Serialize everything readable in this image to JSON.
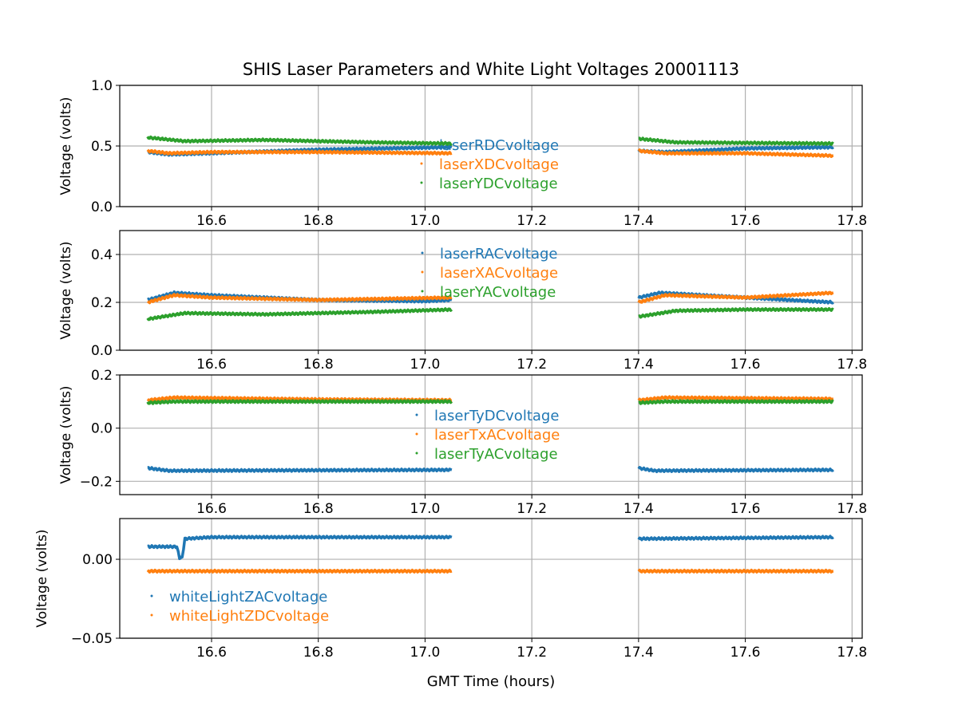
{
  "chart_data": {
    "type": "scatter",
    "title": "SHIS Laser Parameters and White Light Voltages 20001113",
    "xlabel": "GMT Time (hours)",
    "xlim": [
      16.428,
      17.819
    ],
    "xticks": [
      16.6,
      16.8,
      17.0,
      17.2,
      17.4,
      17.6,
      17.8
    ],
    "xtick_labels": [
      "16.6",
      "16.8",
      "17.0",
      "17.2",
      "17.4",
      "17.6",
      "17.8"
    ],
    "grid": true,
    "colors": {
      "blue": "#1f77b4",
      "orange": "#ff7f0e",
      "green": "#2ca02c"
    },
    "panels": [
      {
        "ylabel": "Voltage (volts)",
        "ylim": [
          0,
          1.0
        ],
        "yticks": [
          0,
          0.5,
          1.0
        ],
        "ytick_labels": [
          "0.0",
          "0.5",
          "1.0"
        ],
        "legend_placement": "center",
        "series": [
          {
            "name": "laserRDCvoltage",
            "color": "#1f77b4",
            "segments": [
              [
                [
                  16.48,
                  0.45
                ],
                [
                  16.52,
                  0.43
                ],
                [
                  16.6,
                  0.44
                ],
                [
                  16.8,
                  0.47
                ],
                [
                  17.05,
                  0.49
                ]
              ],
              [
                [
                  17.4,
                  0.46
                ],
                [
                  17.45,
                  0.45
                ],
                [
                  17.6,
                  0.48
                ],
                [
                  17.765,
                  0.49
                ]
              ]
            ]
          },
          {
            "name": "laserXDCvoltage",
            "color": "#ff7f0e",
            "segments": [
              [
                [
                  16.48,
                  0.46
                ],
                [
                  16.52,
                  0.44
                ],
                [
                  16.6,
                  0.45
                ],
                [
                  16.8,
                  0.45
                ],
                [
                  17.05,
                  0.44
                ]
              ],
              [
                [
                  17.4,
                  0.46
                ],
                [
                  17.45,
                  0.44
                ],
                [
                  17.6,
                  0.44
                ],
                [
                  17.765,
                  0.42
                ]
              ]
            ]
          },
          {
            "name": "laserYDCvoltage",
            "color": "#2ca02c",
            "segments": [
              [
                [
                  16.48,
                  0.57
                ],
                [
                  16.55,
                  0.54
                ],
                [
                  16.7,
                  0.55
                ],
                [
                  16.9,
                  0.53
                ],
                [
                  17.05,
                  0.52
                ]
              ],
              [
                [
                  17.4,
                  0.56
                ],
                [
                  17.47,
                  0.53
                ],
                [
                  17.765,
                  0.52
                ]
              ]
            ]
          }
        ]
      },
      {
        "ylabel": "Voltage (volts)",
        "ylim": [
          0,
          0.5
        ],
        "yticks": [
          0,
          0.2,
          0.4
        ],
        "ytick_labels": [
          "0.0",
          "0.2",
          "0.4"
        ],
        "legend_placement": "upper center",
        "series": [
          {
            "name": "laserRACvoltage",
            "color": "#1f77b4",
            "segments": [
              [
                [
                  16.48,
                  0.21
                ],
                [
                  16.53,
                  0.24
                ],
                [
                  16.6,
                  0.23
                ],
                [
                  16.8,
                  0.21
                ],
                [
                  17.0,
                  0.205
                ],
                [
                  17.05,
                  0.21
                ]
              ],
              [
                [
                  17.4,
                  0.22
                ],
                [
                  17.44,
                  0.24
                ],
                [
                  17.6,
                  0.22
                ],
                [
                  17.765,
                  0.2
                ]
              ]
            ]
          },
          {
            "name": "laserXACvoltage",
            "color": "#ff7f0e",
            "segments": [
              [
                [
                  16.48,
                  0.2
                ],
                [
                  16.53,
                  0.23
                ],
                [
                  16.6,
                  0.22
                ],
                [
                  16.8,
                  0.21
                ],
                [
                  17.05,
                  0.22
                ]
              ],
              [
                [
                  17.4,
                  0.2
                ],
                [
                  17.45,
                  0.23
                ],
                [
                  17.6,
                  0.22
                ],
                [
                  17.765,
                  0.24
                ]
              ]
            ]
          },
          {
            "name": "laserYACvoltage",
            "color": "#2ca02c",
            "segments": [
              [
                [
                  16.48,
                  0.13
                ],
                [
                  16.55,
                  0.155
                ],
                [
                  16.7,
                  0.15
                ],
                [
                  16.9,
                  0.16
                ],
                [
                  17.05,
                  0.17
                ]
              ],
              [
                [
                  17.4,
                  0.14
                ],
                [
                  17.47,
                  0.165
                ],
                [
                  17.6,
                  0.17
                ],
                [
                  17.765,
                  0.17
                ]
              ]
            ]
          }
        ]
      },
      {
        "ylabel": "Voltage (volts)",
        "ylim": [
          -0.25,
          0.2
        ],
        "yticks": [
          -0.2,
          0.0,
          0.2
        ],
        "ytick_labels": [
          "−0.2",
          "0.0",
          "0.2"
        ],
        "legend_placement": "center",
        "series": [
          {
            "name": "laserTyDCvoltage",
            "color": "#1f77b4",
            "segments": [
              [
                [
                  16.48,
                  -0.15
                ],
                [
                  16.52,
                  -0.16
                ],
                [
                  17.05,
                  -0.157
                ]
              ],
              [
                [
                  17.4,
                  -0.15
                ],
                [
                  17.43,
                  -0.16
                ],
                [
                  17.765,
                  -0.157
                ]
              ]
            ]
          },
          {
            "name": "laserTxACvoltage",
            "color": "#ff7f0e",
            "segments": [
              [
                [
                  16.48,
                  0.105
                ],
                [
                  16.53,
                  0.115
                ],
                [
                  16.8,
                  0.108
                ],
                [
                  17.05,
                  0.105
                ]
              ],
              [
                [
                  17.4,
                  0.105
                ],
                [
                  17.45,
                  0.115
                ],
                [
                  17.765,
                  0.11
                ]
              ]
            ]
          },
          {
            "name": "laserTyACvoltage",
            "color": "#2ca02c",
            "segments": [
              [
                [
                  16.48,
                  0.095
                ],
                [
                  16.53,
                  0.1
                ],
                [
                  17.05,
                  0.1
                ]
              ],
              [
                [
                  17.4,
                  0.095
                ],
                [
                  17.45,
                  0.1
                ],
                [
                  17.765,
                  0.1
                ]
              ]
            ]
          }
        ]
      },
      {
        "ylabel": "Voltage (volts)",
        "ylim": [
          -0.05,
          0.0258
        ],
        "yticks": [
          -0.05,
          0.0
        ],
        "ytick_labels": [
          "−0.05",
          "0.00"
        ],
        "legend_placement": "lower left",
        "series": [
          {
            "name": "whiteLightZACvoltage",
            "color": "#1f77b4",
            "segments": [
              [
                [
                  16.48,
                  0.008
                ],
                [
                  16.535,
                  0.008
                ],
                [
                  16.54,
                  0.001
                ],
                [
                  16.545,
                  0.001
                ],
                [
                  16.55,
                  0.013
                ],
                [
                  16.6,
                  0.014
                ],
                [
                  17.05,
                  0.014
                ]
              ],
              [
                [
                  17.4,
                  0.013
                ],
                [
                  17.765,
                  0.014
                ]
              ]
            ]
          },
          {
            "name": "whiteLightZDCvoltage",
            "color": "#ff7f0e",
            "segments": [
              [
                [
                  16.48,
                  -0.0075
                ],
                [
                  17.05,
                  -0.0075
                ]
              ],
              [
                [
                  17.4,
                  -0.0075
                ],
                [
                  17.765,
                  -0.0075
                ]
              ]
            ]
          }
        ]
      }
    ]
  }
}
